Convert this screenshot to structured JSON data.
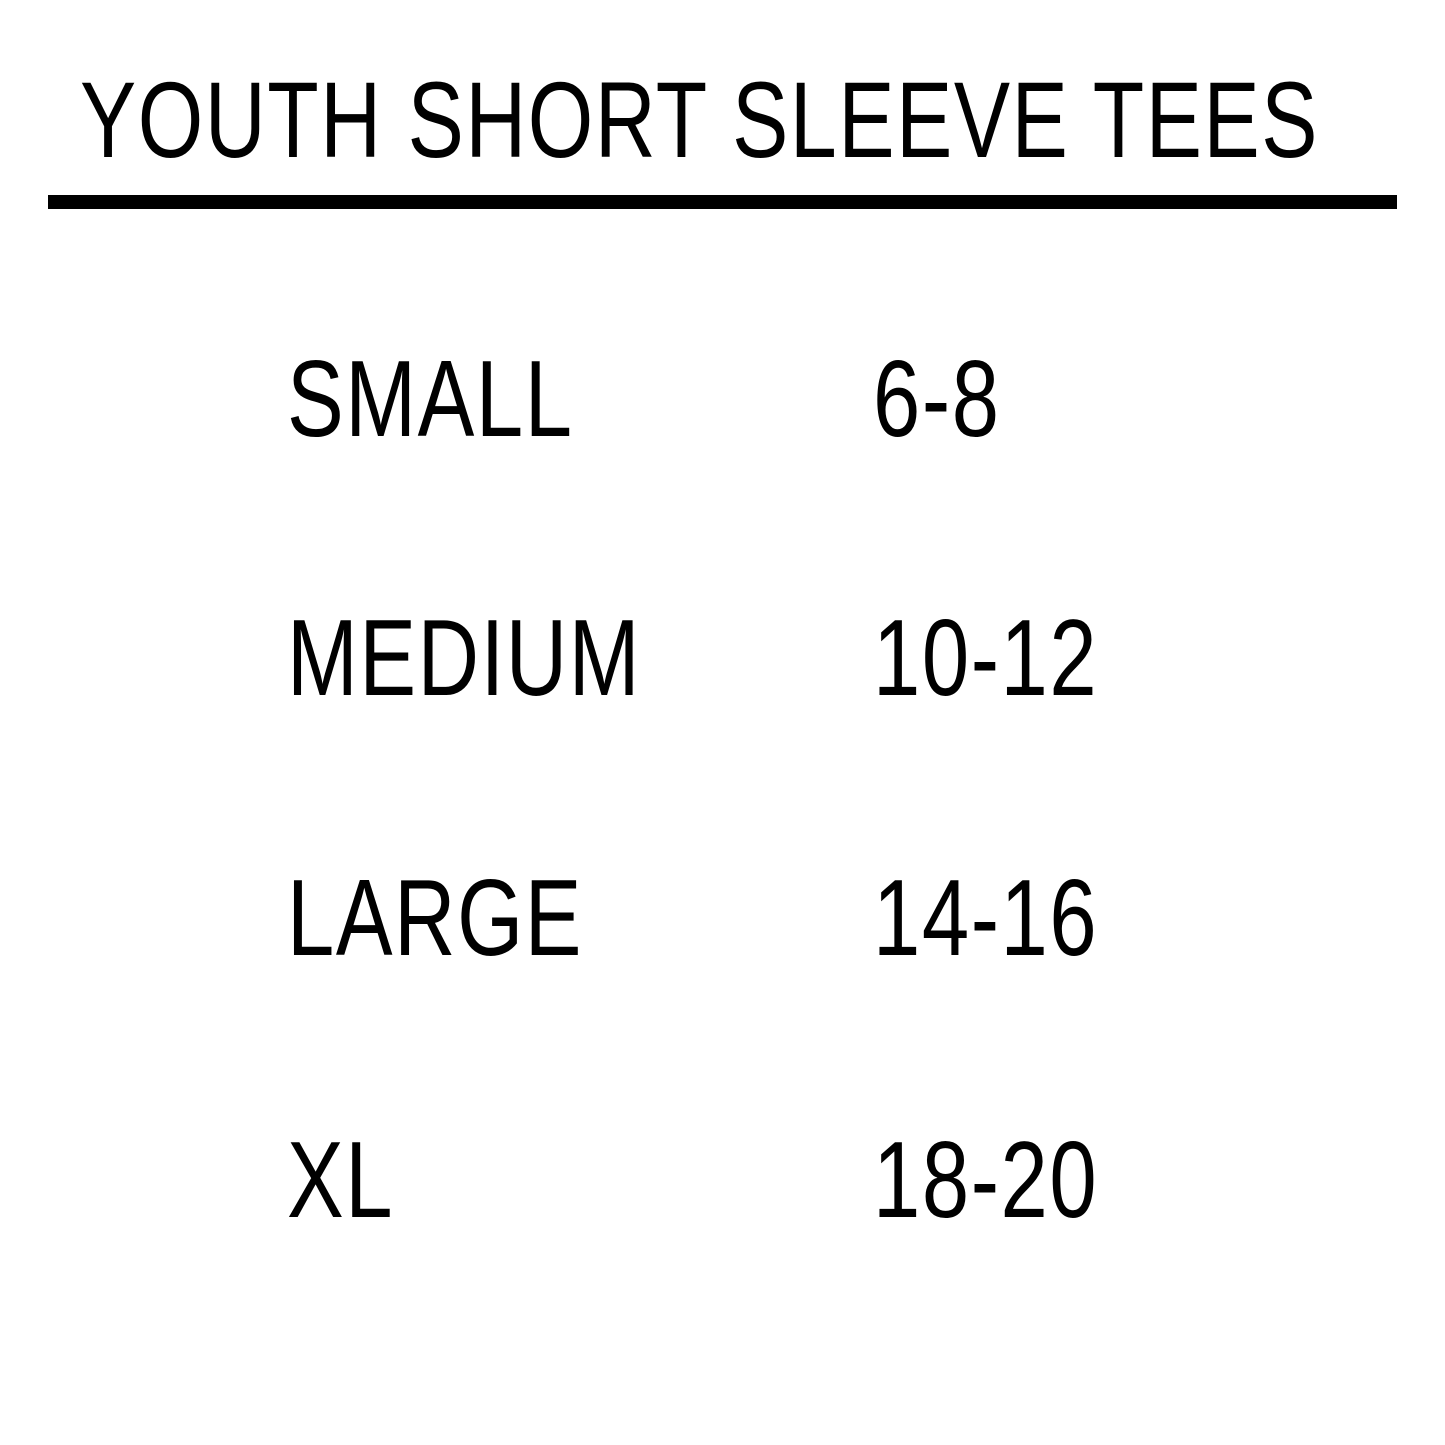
{
  "title": "YOUTH SHORT SLEEVE TEES",
  "sizes": [
    {
      "label": "SMALL",
      "range": "6-8"
    },
    {
      "label": "MEDIUM",
      "range": "10-12"
    },
    {
      "label": "LARGE",
      "range": "14-16"
    },
    {
      "label": "XL",
      "range": "18-20"
    }
  ]
}
